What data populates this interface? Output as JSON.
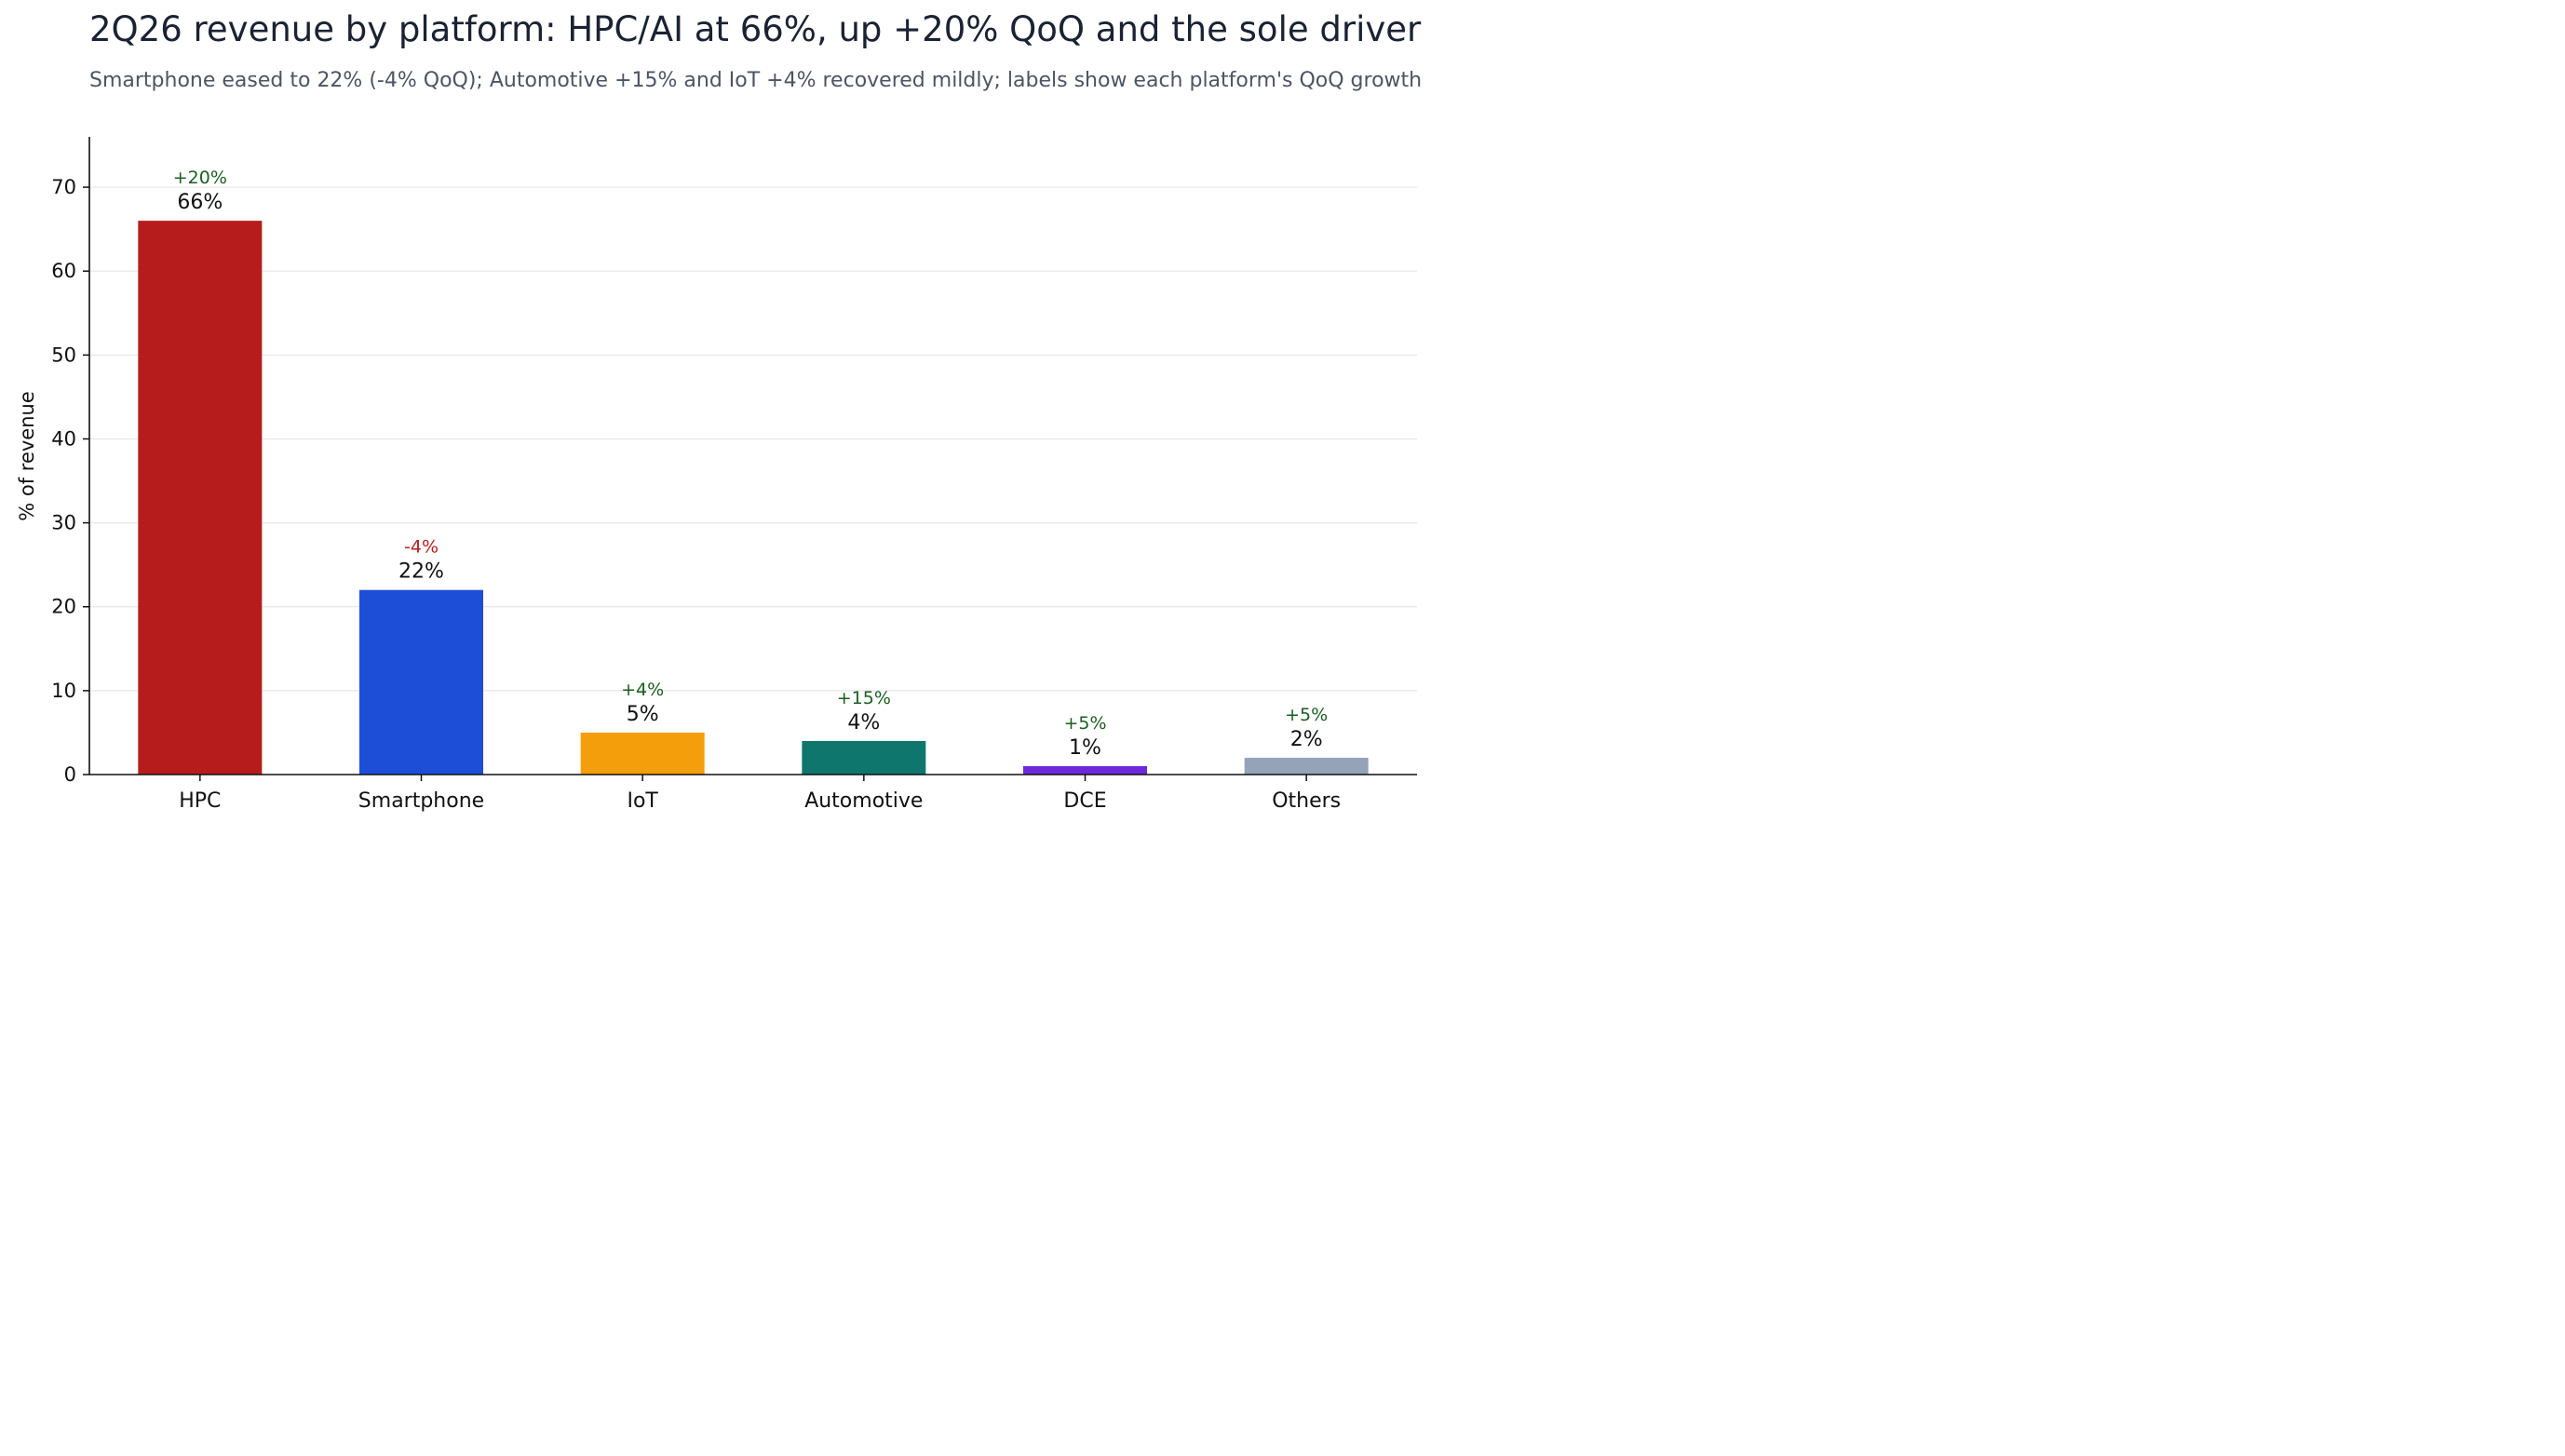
{
  "title": "2Q26 revenue by platform: HPC/AI at 66%, up +20% QoQ and the sole driver",
  "subtitle": "Smartphone eased to 22% (-4% QoQ); Automotive +15% and IoT +4% recovered mildly; labels show each platform's QoQ growth",
  "chart_data": {
    "type": "bar",
    "title": "2Q26 revenue by platform: HPC/AI at 66%, up +20% QoQ and the sole driver",
    "subtitle": "Smartphone eased to 22% (-4% QoQ); Automotive +15% and IoT +4% recovered mildly; labels show each platform's QoQ growth",
    "xlabel": "",
    "ylabel": "% of revenue",
    "ylim": [
      0,
      76
    ],
    "yticks": [
      0,
      10,
      20,
      30,
      40,
      50,
      60,
      70
    ],
    "grid": "horizontal",
    "categories": [
      "HPC",
      "Smartphone",
      "IoT",
      "Automotive",
      "DCE",
      "Others"
    ],
    "values": [
      66,
      22,
      5,
      4,
      1,
      2
    ],
    "value_labels": [
      "66%",
      "22%",
      "5%",
      "4%",
      "1%",
      "2%"
    ],
    "qoq_labels": [
      "+20%",
      "-4%",
      "+4%",
      "+15%",
      "+5%",
      "+5%"
    ],
    "colors": [
      "#b71c1c",
      "#1d4ed8",
      "#f59e0b",
      "#0f766e",
      "#6d28d9",
      "#94a3b8"
    ],
    "growth_colors": {
      "positive": "#1b5e20",
      "negative": "#b91c1c"
    }
  }
}
